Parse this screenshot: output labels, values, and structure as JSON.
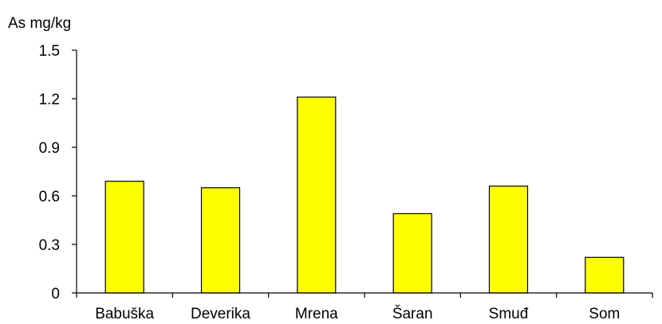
{
  "chart_data": {
    "type": "bar",
    "title": "",
    "xlabel": "",
    "ylabel": "As mg/kg",
    "categories": [
      "Babuška",
      "Deverika",
      "Mrena",
      "Šaran",
      "Smuđ",
      "Som"
    ],
    "values": [
      0.69,
      0.65,
      1.21,
      0.49,
      0.66,
      0.22
    ],
    "ylim": [
      0,
      1.5
    ],
    "yticks": [
      "0",
      "0.3",
      "0.6",
      "0.9",
      "1.2",
      "1.5"
    ],
    "grid": false,
    "legend": "none",
    "colors": {
      "bar_fill": "#ffff00",
      "bar_stroke": "#000000",
      "axis": "#000000"
    }
  }
}
